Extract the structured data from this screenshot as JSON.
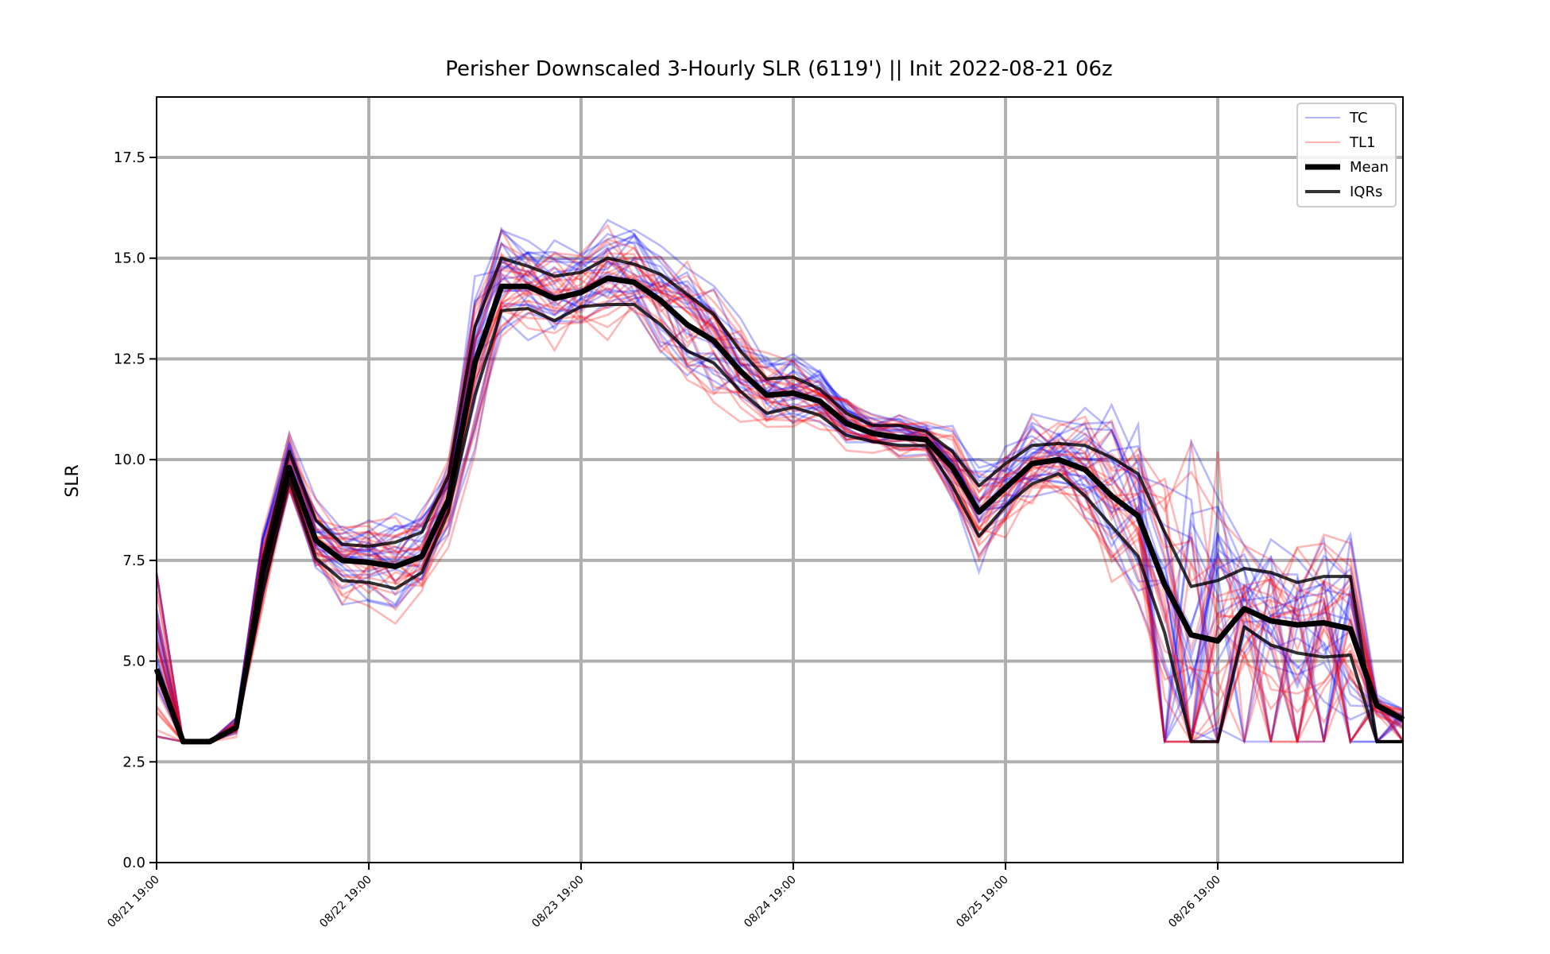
{
  "chart_data": {
    "type": "line",
    "title": "Perisher Downscaled 3-Hourly SLR (6119') || Init 2022-08-21 06z",
    "ylabel": "SLR",
    "xlabel": "",
    "ylim": [
      0,
      19
    ],
    "y_ticks": [
      "0.0",
      "2.5",
      "5.0",
      "7.5",
      "10.0",
      "12.5",
      "15.0",
      "17.5"
    ],
    "x_ticks": [
      "08/21 19:00",
      "08/22 19:00",
      "08/23 19:00",
      "08/24 19:00",
      "08/25 19:00",
      "08/26 19:00"
    ],
    "x_step_hours": 3,
    "grid": true,
    "legend_position": "top-right",
    "legend": [
      {
        "label": "TC",
        "color": "#0000ff",
        "opacity": 0.3,
        "width": 2
      },
      {
        "label": "TL1",
        "color": "#ff0000",
        "opacity": 0.3,
        "width": 2
      },
      {
        "label": "Mean",
        "color": "#000000",
        "opacity": 1,
        "width": 7
      },
      {
        "label": "IQRs",
        "color": "#000000",
        "opacity": 0.8,
        "width": 4
      }
    ],
    "colors": {
      "tc": "#0000ff",
      "tl1": "#ff0000",
      "mean": "#000000",
      "iqr": "#000000",
      "grid": "#b0b0b0"
    },
    "mean": [
      4.8,
      3.0,
      3.0,
      3.35,
      7.2,
      9.8,
      8.0,
      7.5,
      7.45,
      7.35,
      7.6,
      9.0,
      12.4,
      14.3,
      14.3,
      14.0,
      14.15,
      14.5,
      14.4,
      13.95,
      13.35,
      12.95,
      12.2,
      11.6,
      11.65,
      11.45,
      10.9,
      10.65,
      10.55,
      10.5,
      9.8,
      8.7,
      9.3,
      9.9,
      10.0,
      9.75,
      9.1,
      8.6,
      6.9,
      5.65,
      5.5,
      6.3,
      6.0,
      5.9,
      5.95,
      5.8,
      3.9,
      3.55
    ],
    "iqr_upper": [
      4.8,
      3.0,
      3.0,
      3.35,
      7.5,
      10.2,
      8.5,
      7.9,
      7.85,
      7.95,
      8.2,
      9.6,
      13.3,
      15.0,
      14.8,
      14.55,
      14.65,
      15.0,
      14.85,
      14.6,
      14.1,
      13.6,
      12.7,
      12.0,
      12.05,
      11.75,
      11.15,
      10.85,
      10.85,
      10.7,
      10.2,
      9.35,
      9.9,
      10.35,
      10.4,
      10.35,
      10.05,
      9.65,
      8.2,
      6.85,
      7.0,
      7.3,
      7.2,
      6.95,
      7.1,
      7.1,
      3.0,
      3.0
    ],
    "iqr_lower": [
      4.8,
      3.0,
      3.0,
      3.35,
      6.7,
      9.5,
      7.55,
      7.0,
      6.95,
      6.8,
      7.2,
      8.7,
      11.6,
      13.7,
      13.75,
      13.45,
      13.8,
      13.85,
      13.85,
      13.35,
      12.7,
      12.4,
      11.7,
      11.15,
      11.3,
      11.1,
      10.6,
      10.45,
      10.35,
      10.35,
      9.35,
      8.1,
      8.85,
      9.4,
      9.65,
      9.1,
      8.35,
      7.6,
      5.7,
      3.0,
      3.0,
      5.85,
      5.4,
      5.2,
      5.1,
      5.15,
      3.0,
      3.0
    ]
  }
}
